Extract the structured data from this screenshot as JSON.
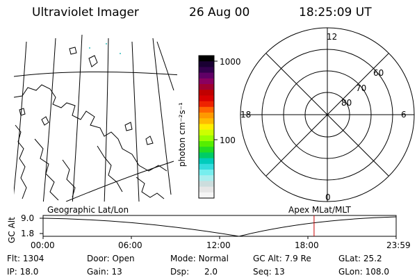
{
  "header": {
    "instrument": "Ultraviolet Imager",
    "date": "26 Aug 00",
    "time": "18:25:09 UT"
  },
  "colorbar": {
    "unit_label": "photon cm⁻²s⁻¹",
    "ticks": [
      "1000",
      "100"
    ],
    "colors": [
      "#000000",
      "#1a0033",
      "#33004d",
      "#600066",
      "#8a0060",
      "#a00030",
      "#c00000",
      "#d80000",
      "#ee2200",
      "#ff6600",
      "#ff9900",
      "#ffbb00",
      "#ffee00",
      "#ccff00",
      "#99ff00",
      "#55ee00",
      "#22dd22",
      "#00cc66",
      "#00ccbb",
      "#33dddd",
      "#77eeee",
      "#aaeeee",
      "#ccdddd",
      "#e6e6e6",
      "#f5f5f5"
    ]
  },
  "polar_plot": {
    "mlt_labels": {
      "top": "12",
      "left": "18",
      "right": "6",
      "bottom": "0"
    },
    "lat_labels": [
      "60",
      "70",
      "80"
    ]
  },
  "timeline": {
    "axis_title": "GC Alt",
    "y_ticks": [
      "9.0",
      "1.8"
    ],
    "left_label": "Geographic Lat/Lon",
    "right_label": "Apex MLat/MLT",
    "time_ticks": [
      "00:00",
      "06:00",
      "12:00",
      "18:00",
      "23:59"
    ],
    "marker_time": "18:25:09",
    "marker_color": "#cc0000"
  },
  "info": {
    "row1": [
      {
        "label": "Flt:",
        "value": "1304"
      },
      {
        "label": "Door:",
        "value": "Open"
      },
      {
        "label": "Mode:",
        "value": "Normal"
      },
      {
        "label": "GC Alt:",
        "value": "7.9 Re"
      },
      {
        "label": "GLat:",
        "value": "25.2"
      }
    ],
    "row2": [
      {
        "label": "IP:",
        "value": "18.0"
      },
      {
        "label": "Gain:",
        "value": "13"
      },
      {
        "label": "Dsp:",
        "value": "2.0"
      },
      {
        "label": "Seq:",
        "value": "13"
      },
      {
        "label": "GLon:",
        "value": "108.0"
      }
    ]
  }
}
